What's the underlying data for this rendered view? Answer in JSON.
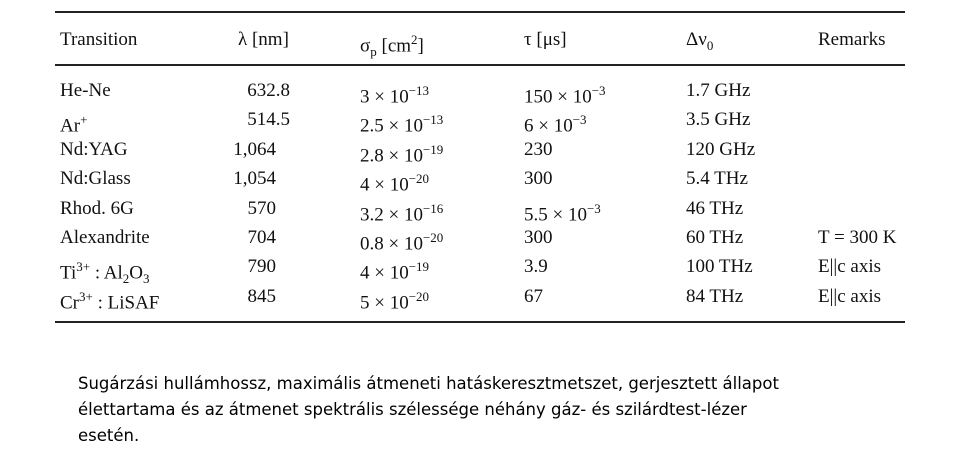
{
  "table": {
    "header": [
      "Transition",
      "λ [nm]",
      [
        "σ",
        {
          "sub": "p"
        },
        " [cm",
        {
          "sup": "2"
        },
        "]"
      ],
      "τ [μs]",
      [
        "Δν",
        {
          "sub": "0"
        }
      ],
      "Remarks"
    ],
    "rows": [
      [
        "He-Ne",
        "632.8",
        [
          "3 × 10",
          {
            "sup": "−13"
          }
        ],
        [
          "150 × 10",
          {
            "sup": "−3"
          }
        ],
        "1.7 GHz"
      ],
      [
        [
          "Ar",
          {
            "sup": "+"
          }
        ],
        "514.5",
        [
          "2.5 × 10",
          {
            "sup": "−13"
          }
        ],
        [
          "6 × 10",
          {
            "sup": "−3"
          }
        ],
        "3.5 GHz"
      ],
      [
        "Nd:YAG",
        "1,064",
        [
          "2.8 × 10",
          {
            "sup": "−19"
          }
        ],
        "230",
        "120 GHz"
      ],
      [
        "Nd:Glass",
        "1,054",
        [
          "4 × 10",
          {
            "sup": "−20"
          }
        ],
        "300",
        "5.4 THz"
      ],
      [
        "Rhod. 6G",
        "570",
        [
          "3.2 × 10",
          {
            "sup": "−16"
          }
        ],
        [
          "5.5 × 10",
          {
            "sup": "−3"
          }
        ],
        "46 THz"
      ],
      [
        "Alexandrite",
        "704",
        [
          "0.8 × 10",
          {
            "sup": "−20"
          }
        ],
        "300",
        "60 THz",
        "T = 300 K"
      ],
      [
        [
          "Ti",
          {
            "sup": "3+"
          },
          " : Al",
          {
            "sub": "2"
          },
          "O",
          {
            "sub": "3"
          }
        ],
        "790",
        [
          "4 × 10",
          {
            "sup": "−19"
          }
        ],
        "3.9",
        "100 THz",
        "E||c axis"
      ],
      [
        [
          "Cr",
          {
            "sup": "3+"
          },
          " : LiSAF"
        ],
        "845",
        [
          "5 × 10",
          {
            "sup": "−20"
          }
        ],
        "67",
        "84 THz",
        "E||c axis"
      ]
    ]
  },
  "caption": [
    "Sugárzási hullámhossz, maximális átmeneti hatáskeresztmetszet, gerjesztett állapot",
    "élettartama és az átmenet spektrális szélessége  néhány gáz- és szilárdtest-lézer",
    "esetén."
  ]
}
